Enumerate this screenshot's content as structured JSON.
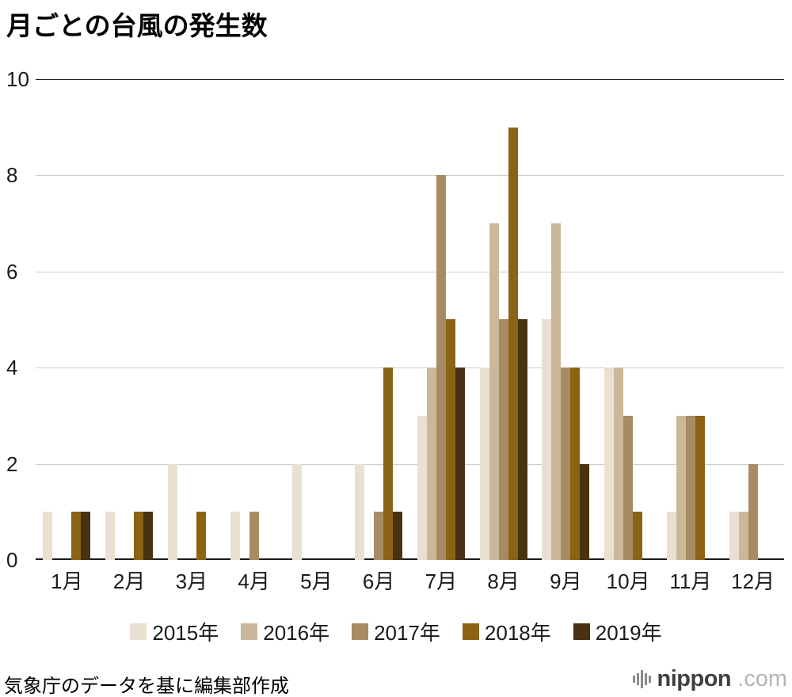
{
  "title": "月ごとの台風の発生数",
  "source_note": "気象庁のデータを基に編集部作成",
  "logo": {
    "name": "nippon",
    "suffix": ".com"
  },
  "chart_data": {
    "type": "bar",
    "title": "月ごとの台風の発生数",
    "categories": [
      "1月",
      "2月",
      "3月",
      "4月",
      "5月",
      "6月",
      "7月",
      "8月",
      "9月",
      "10月",
      "11月",
      "12月"
    ],
    "series": [
      {
        "name": "2015年",
        "color": "#e9e0d2",
        "values": [
          1,
          1,
          2,
          1,
          2,
          2,
          3,
          4,
          5,
          4,
          1,
          1
        ]
      },
      {
        "name": "2016年",
        "color": "#cbb89b",
        "values": [
          0,
          0,
          0,
          0,
          0,
          0,
          4,
          7,
          7,
          4,
          3,
          1
        ]
      },
      {
        "name": "2017年",
        "color": "#a78c63",
        "values": [
          0,
          0,
          0,
          1,
          0,
          1,
          8,
          5,
          4,
          3,
          3,
          2
        ]
      },
      {
        "name": "2018年",
        "color": "#8a6315",
        "values": [
          1,
          1,
          1,
          0,
          0,
          4,
          5,
          9,
          4,
          1,
          3,
          0
        ]
      },
      {
        "name": "2019年",
        "color": "#483212",
        "values": [
          1,
          1,
          0,
          0,
          0,
          1,
          4,
          5,
          2,
          0,
          0,
          0
        ]
      }
    ],
    "xlabel": "",
    "ylabel": "",
    "yticks": [
      0,
      2,
      4,
      6,
      8,
      10
    ],
    "ylim": [
      0,
      10
    ],
    "grid": true,
    "legend_position": "bottom"
  }
}
